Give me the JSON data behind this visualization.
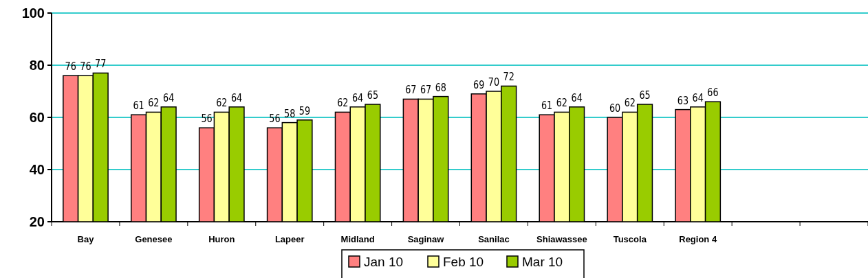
{
  "chart_data": {
    "type": "bar",
    "categories": [
      "Bay",
      "Genesee",
      "Huron",
      "Lapeer",
      "Midland",
      "Saginaw",
      "Sanilac",
      "Shiawassee",
      "Tuscola",
      "Region 4",
      null,
      null
    ],
    "series": [
      {
        "name": "Jan 10",
        "color": "#ff8080",
        "values": [
          76,
          61,
          56,
          56,
          62,
          67,
          69,
          61,
          60,
          63,
          null,
          null
        ]
      },
      {
        "name": "Feb 10",
        "color": "#ffff99",
        "values": [
          76,
          62,
          62,
          58,
          64,
          67,
          70,
          62,
          62,
          64,
          null,
          null
        ]
      },
      {
        "name": "Mar 10",
        "color": "#99cc00",
        "values": [
          77,
          64,
          64,
          59,
          65,
          68,
          72,
          64,
          65,
          66,
          null,
          null
        ]
      }
    ],
    "ylim": [
      20,
      100
    ],
    "yticks": [
      20,
      40,
      60,
      80,
      100
    ],
    "grid": "y",
    "legend": "bottom",
    "data_labels": true
  }
}
